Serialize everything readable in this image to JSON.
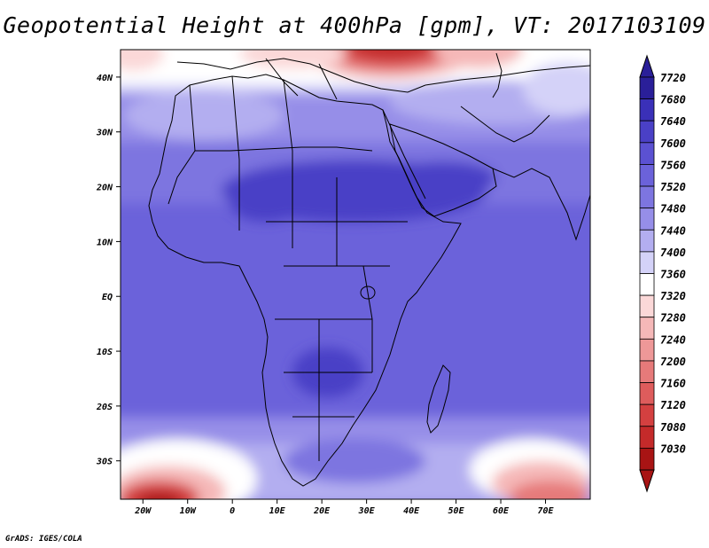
{
  "title": "Geopotential Height at 400hPa [gpm], VT: 2017103109",
  "footer": "GrADS: IGES/COLA",
  "map": {
    "lon_range": [
      -25,
      80
    ],
    "lat_range": [
      -37,
      45
    ],
    "lat_ticks": [
      {
        "value": 40,
        "label": "40N"
      },
      {
        "value": 30,
        "label": "30N"
      },
      {
        "value": 20,
        "label": "20N"
      },
      {
        "value": 10,
        "label": "10N"
      },
      {
        "value": 0,
        "label": "EQ"
      },
      {
        "value": -10,
        "label": "10S"
      },
      {
        "value": -20,
        "label": "20S"
      },
      {
        "value": -30,
        "label": "30S"
      }
    ],
    "lon_ticks": [
      {
        "value": -20,
        "label": "20W"
      },
      {
        "value": -10,
        "label": "10W"
      },
      {
        "value": 0,
        "label": "0"
      },
      {
        "value": 10,
        "label": "10E"
      },
      {
        "value": 20,
        "label": "20E"
      },
      {
        "value": 30,
        "label": "30E"
      },
      {
        "value": 40,
        "label": "40E"
      },
      {
        "value": 50,
        "label": "50E"
      },
      {
        "value": 60,
        "label": "60E"
      },
      {
        "value": 70,
        "label": "70E"
      }
    ]
  },
  "colorbar": {
    "levels": [
      "7720",
      "7680",
      "7640",
      "7600",
      "7560",
      "7520",
      "7480",
      "7440",
      "7400",
      "7360",
      "7320",
      "7280",
      "7240",
      "7200",
      "7160",
      "7120",
      "7080",
      "7030"
    ],
    "colors": [
      "#2a1f99",
      "#3a30b8",
      "#4a40c6",
      "#5b51d2",
      "#6b62da",
      "#7d75e0",
      "#968ee8",
      "#b3aef0",
      "#d4d2f8",
      "#ffffff",
      "#fbd8d8",
      "#f5b8b8",
      "#ee9898",
      "#e67a7a",
      "#de5c5c",
      "#d44040",
      "#c42a2a",
      "#a81414"
    ]
  }
}
